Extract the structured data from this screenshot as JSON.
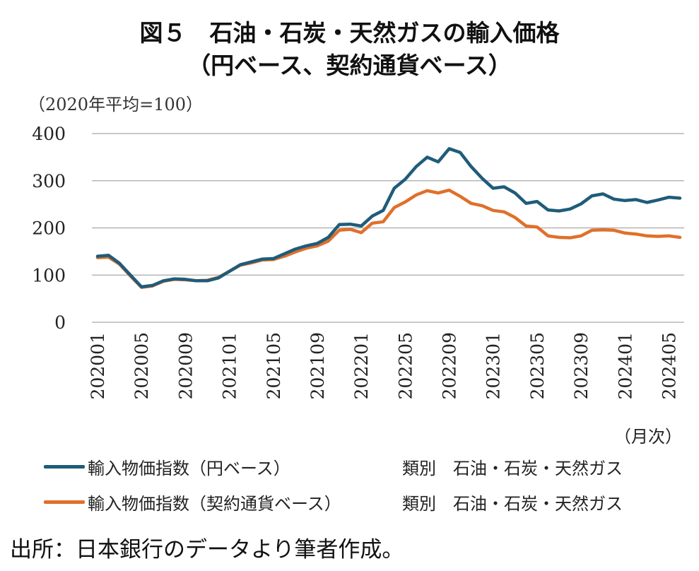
{
  "title_line1": "図５　石油・石炭・天然ガスの輸入価格",
  "title_line2": "（円ベース、契約通貨ベース）",
  "unit_label": "（2020年平均=100）",
  "x_unit_label": "（月次）",
  "source": "出所：日本銀行のデータより筆者作成。",
  "colors": {
    "series_yen": "#1f5c7a",
    "series_contract": "#e0702a",
    "grid": "#a9a9a9"
  },
  "chart_data": {
    "type": "line",
    "title": "図５　石油・石炭・天然ガスの輸入価格（円ベース、契約通貨ベース）",
    "ylabel": "（2020年平均=100）",
    "xlabel": "（月次）",
    "ylim": [
      0,
      400
    ],
    "yticks": [
      0,
      100,
      200,
      300,
      400
    ],
    "grid": true,
    "legend_position": "bottom",
    "x": [
      "202001",
      "202002",
      "202003",
      "202004",
      "202005",
      "202006",
      "202007",
      "202008",
      "202009",
      "202010",
      "202011",
      "202012",
      "202101",
      "202102",
      "202103",
      "202104",
      "202105",
      "202106",
      "202107",
      "202108",
      "202109",
      "202110",
      "202111",
      "202112",
      "202201",
      "202202",
      "202203",
      "202204",
      "202205",
      "202206",
      "202207",
      "202208",
      "202209",
      "202210",
      "202211",
      "202212",
      "202301",
      "202302",
      "202303",
      "202304",
      "202305",
      "202306",
      "202307",
      "202308",
      "202309",
      "202310",
      "202311",
      "202312",
      "202401",
      "202402",
      "202403",
      "202404",
      "202405",
      "202406"
    ],
    "xtick_labels": [
      "202001",
      "202005",
      "202009",
      "202101",
      "202105",
      "202109",
      "202201",
      "202205",
      "202209",
      "202301",
      "202305",
      "202309",
      "202401",
      "202405"
    ],
    "series": [
      {
        "name": "輸入物価指数（円ベース）",
        "category": "類別　石油・石炭・天然ガス",
        "values": [
          140,
          142,
          125,
          100,
          75,
          78,
          88,
          92,
          91,
          88,
          88,
          94,
          108,
          122,
          128,
          134,
          135,
          145,
          155,
          162,
          167,
          180,
          207,
          208,
          204,
          225,
          237,
          284,
          303,
          330,
          350,
          340,
          368,
          360,
          330,
          305,
          284,
          287,
          274,
          252,
          256,
          238,
          236,
          240,
          251,
          268,
          272,
          261,
          258,
          260,
          254,
          259,
          265,
          263
        ]
      },
      {
        "name": "輸入物価指数（契約通貨ベース）",
        "category": "類別　石油・石炭・天然ガス",
        "values": [
          137,
          138,
          123,
          98,
          74,
          77,
          87,
          91,
          90,
          88,
          89,
          95,
          108,
          121,
          126,
          132,
          133,
          140,
          149,
          157,
          162,
          172,
          195,
          197,
          190,
          210,
          213,
          243,
          255,
          270,
          279,
          274,
          280,
          267,
          252,
          247,
          237,
          234,
          222,
          204,
          202,
          183,
          180,
          179,
          183,
          195,
          196,
          195,
          189,
          187,
          183,
          182,
          183,
          180
        ]
      }
    ]
  }
}
